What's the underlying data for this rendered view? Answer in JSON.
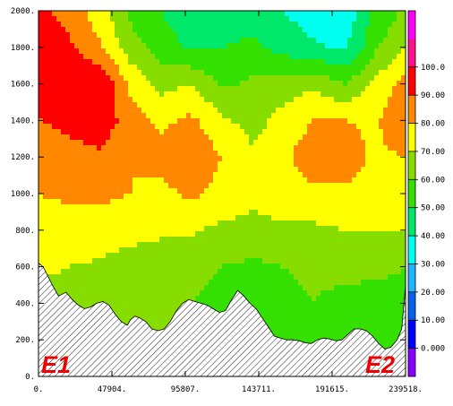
{
  "chart_data": {
    "type": "heatmap",
    "title": "",
    "xlabel": "",
    "ylabel": "",
    "xlim": [
      0,
      239518
    ],
    "ylim": [
      0,
      2000
    ],
    "x_tick_labels": [
      "0.",
      "47904.",
      "95807.",
      "143711.",
      "191615.",
      "239518."
    ],
    "x_ticks": [
      0,
      47904,
      95807,
      143711,
      191615,
      239518
    ],
    "y_tick_labels": [
      "0.",
      "200.",
      "400.",
      "600.",
      "800.",
      "1000.",
      "1200.",
      "1400.",
      "1600.",
      "1800.",
      "2000."
    ],
    "y_ticks": [
      0,
      200,
      400,
      600,
      800,
      1000,
      1200,
      1400,
      1600,
      1800,
      2000
    ],
    "colorbar": {
      "levels": [
        -10,
        0,
        10,
        20,
        30,
        40,
        50,
        60,
        70,
        80,
        90,
        100,
        110
      ],
      "labels": [
        "0.000",
        "10.00",
        "20.00",
        "30.00",
        "40.00",
        "50.00",
        "60.00",
        "70.00",
        "80.00",
        "90.00",
        "100.0"
      ],
      "label_values": [
        0,
        10,
        20,
        30,
        40,
        50,
        60,
        70,
        80,
        90,
        100
      ],
      "colors": [
        "#8a00ff",
        "#0000ff",
        "#0a5fe8",
        "#1fb4ff",
        "#00ffee",
        "#00e86a",
        "#33e000",
        "#88dd00",
        "#ffff00",
        "#ff8800",
        "#ff0000",
        "#ff1188",
        "#ff00ff"
      ]
    },
    "annotations": [
      "E1",
      "E2"
    ],
    "terrain_x": [
      0,
      3000,
      5500,
      9000,
      13000,
      18000,
      22000,
      26000,
      30000,
      34000,
      38000,
      42000,
      46000,
      50000,
      54000,
      58000,
      60000,
      63000,
      66000,
      70000,
      74000,
      78000,
      82000,
      86000,
      90000,
      94000,
      98000,
      102000,
      106000,
      110000,
      114000,
      118000,
      122000,
      126000,
      130000,
      134000,
      138000,
      142000,
      146000,
      150000,
      154000,
      158000,
      162000,
      166000,
      170000,
      174000,
      178000,
      182000,
      186000,
      190000,
      194000,
      198000,
      202000,
      206000,
      210000,
      214000,
      218000,
      222000,
      226000,
      230000,
      234000,
      237000,
      239518
    ],
    "terrain_y": [
      620,
      600,
      560,
      500,
      440,
      460,
      420,
      390,
      370,
      380,
      400,
      410,
      390,
      340,
      300,
      280,
      310,
      330,
      320,
      300,
      260,
      250,
      260,
      300,
      360,
      400,
      420,
      410,
      400,
      390,
      370,
      350,
      360,
      420,
      470,
      440,
      400,
      370,
      320,
      270,
      220,
      210,
      200,
      200,
      195,
      185,
      180,
      200,
      210,
      205,
      195,
      200,
      230,
      260,
      260,
      250,
      220,
      180,
      150,
      160,
      200,
      260,
      500
    ],
    "field": {
      "x": [
        0,
        19960,
        39920,
        59880,
        79840,
        99800,
        119760,
        139720,
        159680,
        179640,
        199600,
        219560,
        239518
      ],
      "y": [
        0,
        200,
        400,
        600,
        800,
        1000,
        1200,
        1400,
        1600,
        1800,
        2000
      ],
      "values": [
        [
          66,
          63,
          62,
          60,
          60,
          58,
          56,
          56,
          58,
          58,
          56,
          56,
          57
        ],
        [
          66,
          63,
          62,
          60,
          60,
          58,
          56,
          56,
          58,
          58,
          56,
          56,
          57
        ],
        [
          67,
          65,
          64,
          62,
          61,
          60,
          57,
          57,
          59,
          60,
          58,
          58,
          59
        ],
        [
          72,
          70,
          69,
          66,
          64,
          63,
          60,
          58,
          60,
          61,
          62,
          61,
          60
        ],
        [
          76,
          75,
          74,
          73,
          72,
          71,
          68,
          67,
          68,
          68,
          70,
          70,
          71
        ],
        [
          80,
          82,
          83,
          80,
          77,
          82,
          77,
          72,
          76,
          78,
          78,
          76,
          78
        ],
        [
          82,
          84,
          88,
          80,
          84,
          88,
          80,
          72,
          78,
          86,
          86,
          78,
          80
        ],
        [
          89,
          95,
          98,
          84,
          78,
          82,
          72,
          66,
          74,
          80,
          80,
          78,
          90
        ],
        [
          94,
          98,
          99,
          78,
          66,
          70,
          58,
          62,
          64,
          68,
          60,
          72,
          84
        ],
        [
          96,
          92,
          82,
          64,
          56,
          48,
          50,
          52,
          46,
          42,
          38,
          58,
          70
        ],
        [
          92,
          86,
          74,
          58,
          50,
          42,
          44,
          46,
          40,
          34,
          32,
          52,
          62
        ]
      ]
    }
  }
}
